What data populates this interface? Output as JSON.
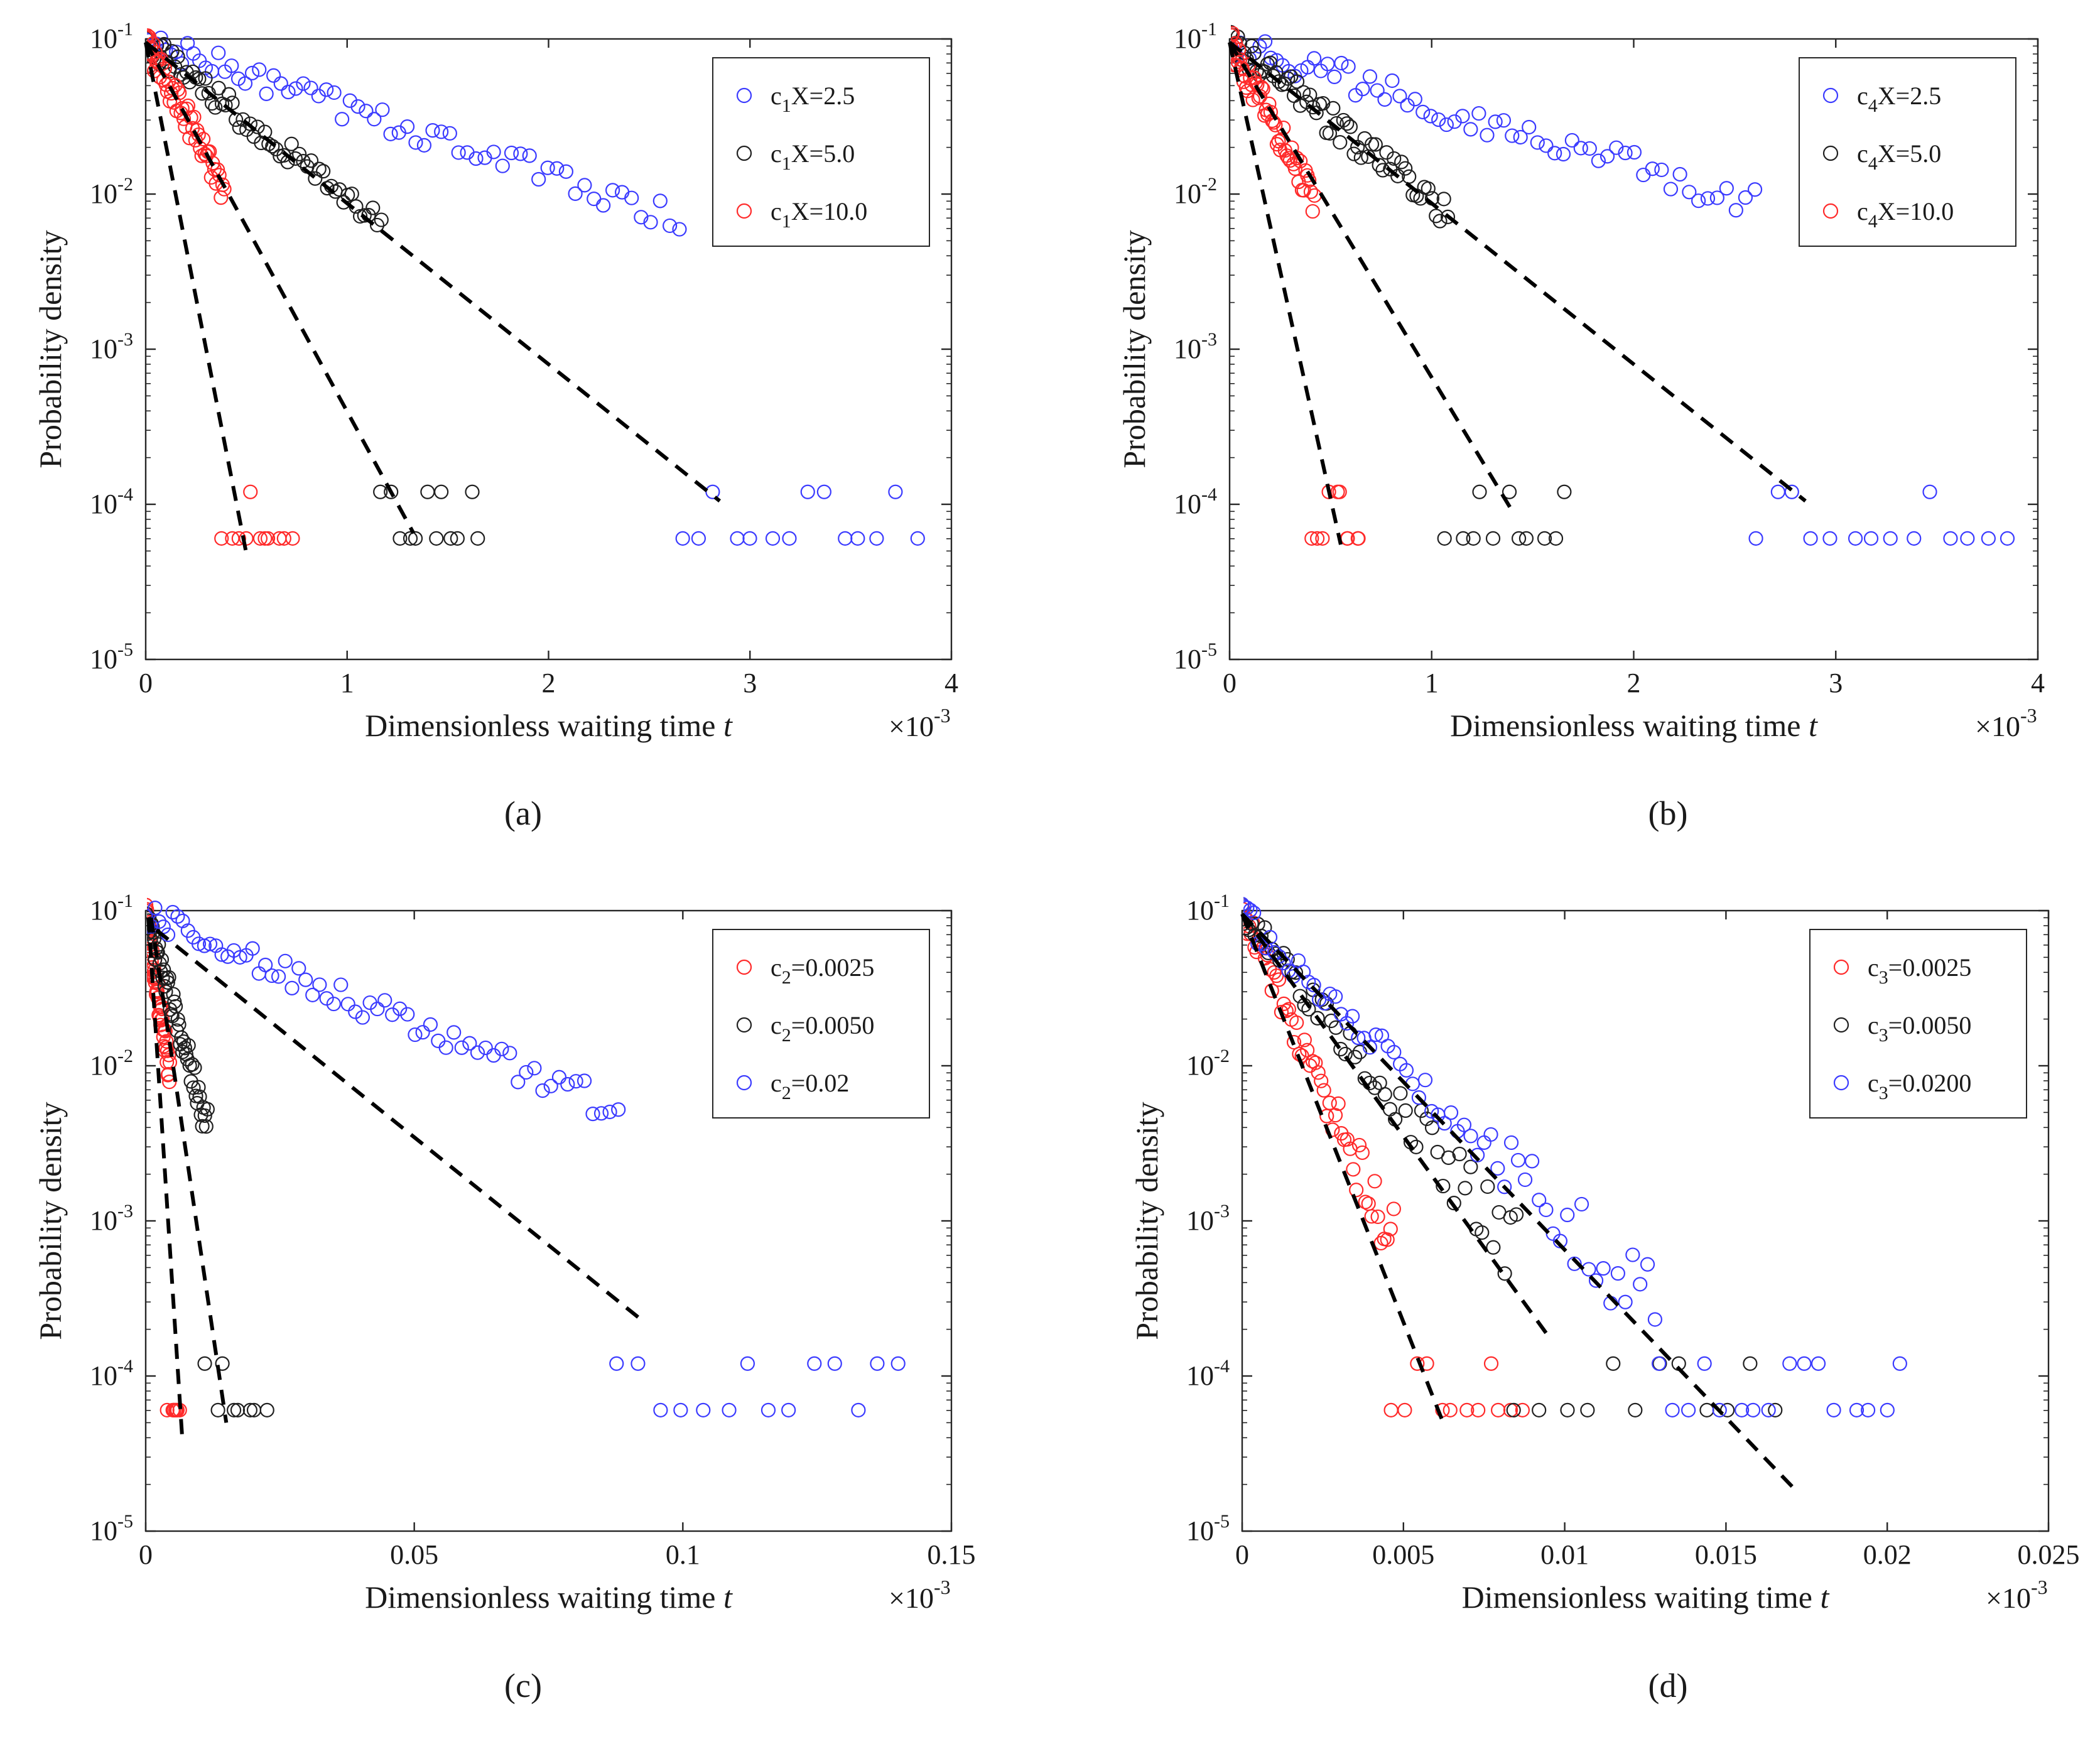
{
  "figure": {
    "caption_style": "(x)"
  },
  "colors": {
    "blue": "#3b3bff",
    "black": "#202020",
    "red": "#ff2a2a",
    "fit": "#000000",
    "axis": "#262626"
  },
  "chart_data": [
    {
      "id": "a",
      "type": "scatter",
      "panel_label": "(a)",
      "xlabel": "Dimensionless waiting time",
      "xlabel_var": "t",
      "ylabel": "Probability density",
      "x_exponent_base": "×10",
      "x_exponent": "-3",
      "xlim": [
        0,
        4
      ],
      "ylim_log10": [
        -5,
        -1
      ],
      "xticks": [
        0,
        1,
        2,
        3,
        4
      ],
      "xtick_labels": [
        "0",
        "1",
        "2",
        "3",
        "4"
      ],
      "yticks_log10": [
        -1,
        -2,
        -3,
        -4,
        -5
      ],
      "ytick_bases": [
        "10",
        "10",
        "10",
        "10",
        "10"
      ],
      "ytick_exps": [
        "-1",
        "-2",
        "-3",
        "-4",
        "-5"
      ],
      "legend_position": "top-right",
      "series": [
        {
          "name": "c1X=2.5",
          "label_parts": [
            "c",
            "1",
            "X=2.5"
          ],
          "color": "#3b3bff",
          "decay": 1.02,
          "noise": 0.09,
          "tail_start": 2.65,
          "tail_end": 3.82,
          "tail_n": 14,
          "n": 70,
          "start": 0.0,
          "fit": [
            [
              0.0,
              0.095
            ],
            [
              2.85,
              0.000105
            ]
          ]
        },
        {
          "name": "c1X=5.0",
          "label_parts": [
            "c",
            "1",
            "X=5.0"
          ],
          "color": "#202020",
          "decay": 0.44,
          "noise": 0.09,
          "tail_start": 1.17,
          "tail_end": 1.65,
          "tail_n": 12,
          "n": 70,
          "start": 0.0,
          "fit": [
            [
              0.0,
              0.095
            ],
            [
              1.33,
              6.5e-05
            ]
          ]
        },
        {
          "name": "c1X=10.0",
          "label_parts": [
            "c",
            "1",
            "X=10.0"
          ],
          "color": "#ff2a2a",
          "decay": 0.18,
          "noise": 0.1,
          "tail_start": 0.39,
          "tail_end": 0.72,
          "tail_n": 11,
          "n": 60,
          "start": 0.0,
          "fit": [
            [
              0.0,
              0.095
            ],
            [
              0.5,
              4.8e-05
            ]
          ]
        }
      ]
    },
    {
      "id": "b",
      "type": "scatter",
      "panel_label": "(b)",
      "xlabel": "Dimensionless waiting time",
      "xlabel_var": "t",
      "ylabel": "Probability density",
      "x_exponent_base": "×10",
      "x_exponent": "-3",
      "xlim": [
        0,
        4
      ],
      "ylim_log10": [
        -5,
        -1
      ],
      "xticks": [
        0,
        1,
        2,
        3,
        4
      ],
      "xtick_labels": [
        "0",
        "1",
        "2",
        "3",
        "4"
      ],
      "yticks_log10": [
        -1,
        -2,
        -3,
        -4,
        -5
      ],
      "ytick_bases": [
        "10",
        "10",
        "10",
        "10",
        "10"
      ],
      "ytick_exps": [
        "-1",
        "-2",
        "-3",
        "-4",
        "-5"
      ],
      "legend_position": "top-right",
      "series": [
        {
          "name": "c4X=2.5",
          "label_parts": [
            "c",
            "4",
            "X=2.5"
          ],
          "color": "#3b3bff",
          "decay": 1.08,
          "noise": 0.1,
          "tail_start": 2.6,
          "tail_end": 3.85,
          "tail_n": 14,
          "n": 70,
          "start": 0.0,
          "fit": [
            [
              0.0,
              0.095
            ],
            [
              2.85,
              0.000105
            ]
          ]
        },
        {
          "name": "c4X=5.0",
          "label_parts": [
            "c",
            "4",
            "X=5.0"
          ],
          "color": "#202020",
          "decay": 0.43,
          "noise": 0.1,
          "tail_start": 1.08,
          "tail_end": 1.66,
          "tail_n": 11,
          "n": 70,
          "start": 0.0,
          "fit": [
            [
              0.0,
              0.095
            ],
            [
              1.4,
              9e-05
            ]
          ]
        },
        {
          "name": "c4X=10.0",
          "label_parts": [
            "c",
            "4",
            "X=10.0"
          ],
          "color": "#ff2a2a",
          "decay": 0.18,
          "noise": 0.1,
          "tail_start": 0.42,
          "tail_end": 0.64,
          "tail_n": 10,
          "n": 60,
          "start": 0.0,
          "fit": [
            [
              0.0,
              0.095
            ],
            [
              0.55,
              5.5e-05
            ]
          ]
        }
      ]
    },
    {
      "id": "c",
      "type": "scatter",
      "panel_label": "(c)",
      "xlabel": "Dimensionless waiting time",
      "xlabel_var": "t",
      "ylabel": "Probability density",
      "x_exponent_base": "×10",
      "x_exponent": "-3",
      "xlim": [
        0,
        0.15
      ],
      "ylim_log10": [
        -5,
        -1
      ],
      "xticks": [
        0,
        0.05,
        0.1,
        0.15
      ],
      "xtick_labels": [
        "0",
        "0.05",
        "0.1",
        "0.15"
      ],
      "yticks_log10": [
        -1,
        -2,
        -3,
        -4,
        -5
      ],
      "ytick_bases": [
        "10",
        "10",
        "10",
        "10",
        "10"
      ],
      "ytick_exps": [
        "-1",
        "-2",
        "-3",
        "-4",
        "-5"
      ],
      "legend_position": "top-right",
      "series": [
        {
          "name": "c2=0.0025",
          "label_parts": [
            "c",
            "2",
            "=0.0025"
          ],
          "color": "#ff2a2a",
          "decay": 0.0019,
          "noise": 0.1,
          "tail_start": 0.0045,
          "tail_end": 0.0065,
          "tail_n": 8,
          "n": 60,
          "start": 0.0,
          "fit": [
            [
              0.0005,
              0.09
            ],
            [
              0.0068,
              4e-05
            ]
          ]
        },
        {
          "name": "c2=0.0050",
          "label_parts": [
            "c",
            "2",
            "=0.0050"
          ],
          "color": "#202020",
          "decay": 0.0037,
          "noise": 0.1,
          "tail_start": 0.0115,
          "tail_end": 0.022,
          "tail_n": 8,
          "n": 60,
          "start": 0.0,
          "fit": [
            [
              0.001,
              0.09
            ],
            [
              0.015,
              5e-05
            ]
          ]
        },
        {
          "name": "c2=0.02",
          "label_parts": [
            "c",
            "2",
            "=0.02"
          ],
          "color": "#3b3bff",
          "decay": 0.03,
          "noise": 0.09,
          "tail_start": 0.088,
          "tail_end": 0.14,
          "tail_n": 14,
          "n": 70,
          "start": 0.0,
          "fit": [
            [
              0.002,
              0.075
            ],
            [
              0.093,
              0.00022
            ]
          ]
        }
      ]
    },
    {
      "id": "d",
      "type": "scatter",
      "panel_label": "(d)",
      "xlabel": "Dimensionless waiting time",
      "xlabel_var": "t",
      "ylabel": "Probability density",
      "x_exponent_base": "×10",
      "x_exponent": "-3",
      "xlim": [
        0,
        0.025
      ],
      "ylim_log10": [
        -5,
        -1
      ],
      "xticks": [
        0,
        0.005,
        0.01,
        0.015,
        0.02,
        0.025
      ],
      "xtick_labels": [
        "0",
        "0.005",
        "0.01",
        "0.015",
        "0.02",
        "0.025"
      ],
      "yticks_log10": [
        -1,
        -2,
        -3,
        -4,
        -5
      ],
      "ytick_bases": [
        "10",
        "10",
        "10",
        "10",
        "10"
      ],
      "ytick_exps": [
        "-1",
        "-2",
        "-3",
        "-4",
        "-5"
      ],
      "legend_position": "top-right",
      "series": [
        {
          "name": "c3=0.0025",
          "label_parts": [
            "c",
            "3",
            "=0.0025"
          ],
          "color": "#ff2a2a",
          "decay": 0.00095,
          "noise": 0.1,
          "tail_start": 0.0047,
          "tail_end": 0.0088,
          "tail_n": 12,
          "n": 60,
          "start": 0.0,
          "fit": [
            [
              0.0,
              0.095
            ],
            [
              0.0062,
              5.2e-05
            ]
          ]
        },
        {
          "name": "c3=0.0050",
          "label_parts": [
            "c",
            "3",
            "=0.0050"
          ],
          "color": "#202020",
          "decay": 0.0017,
          "noise": 0.1,
          "tail_start": 0.0085,
          "tail_end": 0.0166,
          "tail_n": 12,
          "n": 60,
          "start": 0.0,
          "fit": [
            [
              0.0,
              0.095
            ],
            [
              0.0095,
              0.00018
            ]
          ]
        },
        {
          "name": "c3=0.0200",
          "label_parts": [
            "c",
            "3",
            "=0.0200"
          ],
          "color": "#3b3bff",
          "decay": 0.0022,
          "noise": 0.1,
          "tail_start": 0.0128,
          "tail_end": 0.0205,
          "tail_n": 16,
          "n": 70,
          "start": 0.0,
          "fit": [
            [
              0.0,
              0.095
            ],
            [
              0.0172,
              1.8e-05
            ]
          ]
        }
      ]
    }
  ]
}
